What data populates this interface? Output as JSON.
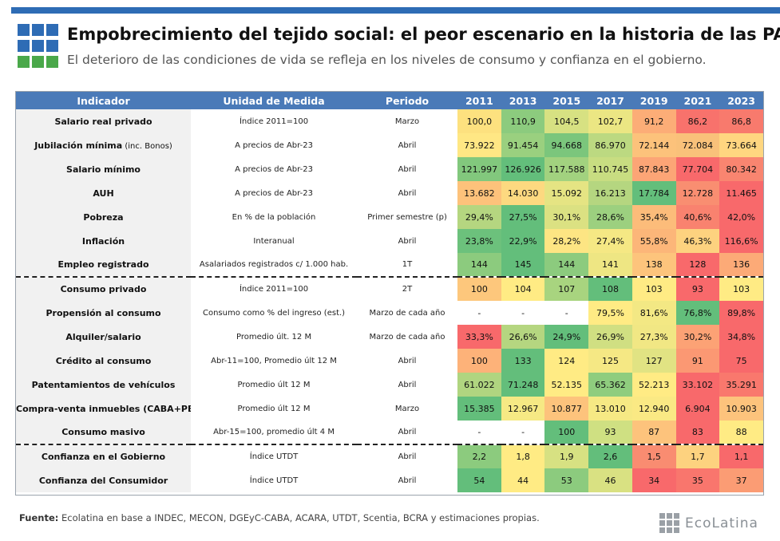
{
  "header": {
    "title": "Empobrecimiento del tejido social: el peor escenario en la historia de las PASO",
    "subtitle": "El deterioro de las condiciones de vida se refleja en los niveles de consumo y confianza en el gobierno."
  },
  "colors": {
    "accent": "#2e6cb5",
    "logo_blue": "#2e6cb5",
    "logo_green": "#4aa84a",
    "table_header": "#4a7ab8",
    "scale_green": "#63be7b",
    "scale_yellow": "#ffeb84",
    "scale_red": "#f8696b"
  },
  "chart_data": {
    "type": "table",
    "title": "Empobrecimiento del tejido social: el peor escenario en la historia de las PASO",
    "columns": [
      "Indicador",
      "Unidad de Medida",
      "Periodo",
      "2011",
      "2013",
      "2015",
      "2017",
      "2019",
      "2021",
      "2023"
    ],
    "rows": [
      {
        "indicator": "Salario real privado",
        "indicator_note": "",
        "unit": "Índice 2011=100",
        "period": "Marzo",
        "values": [
          "100,0",
          "110,9",
          "104,5",
          "102,7",
          "91,2",
          "86,2",
          "86,8"
        ],
        "scale": [
          "#fde17f",
          "#8ccb7e",
          "#d7e182",
          "#ebe683",
          "#fcad77",
          "#f8726c",
          "#f87a6d"
        ],
        "group_start": false
      },
      {
        "indicator": "Jubilación mínima",
        "indicator_note": "(inc. Bonos)",
        "unit": "A precios de Abr-23",
        "period": "Abril",
        "values": [
          "73.922",
          "91.454",
          "94.668",
          "86.970",
          "72.144",
          "72.084",
          "73.664"
        ],
        "scale": [
          "#ffe784",
          "#9ad07f",
          "#7bc67c",
          "#bcd981",
          "#fcc27b",
          "#f9c17a",
          "#ffd680"
        ],
        "group_start": false
      },
      {
        "indicator": "Salario mínimo",
        "indicator_note": "",
        "unit": "A precios de Abr-23",
        "period": "Abril",
        "values": [
          "121.997",
          "126.926",
          "117.588",
          "110.745",
          "87.843",
          "77.704",
          "80.342"
        ],
        "scale": [
          "#82c87d",
          "#63be7b",
          "#a2d27f",
          "#c8dd81",
          "#fca576",
          "#f8696b",
          "#f98570"
        ],
        "group_start": false
      },
      {
        "indicator": "AUH",
        "indicator_note": "",
        "unit": "A precios de Abr-23",
        "period": "Abril",
        "values": [
          "13.682",
          "14.030",
          "15.092",
          "16.213",
          "17.784",
          "12.728",
          "11.465"
        ],
        "scale": [
          "#fdc27b",
          "#fdd980",
          "#e5e483",
          "#b5d680",
          "#63be7b",
          "#f98e71",
          "#f8696b"
        ],
        "group_start": false
      },
      {
        "indicator": "Pobreza",
        "indicator_note": "",
        "unit": "En % de la población",
        "period": "Primer semestre (p)",
        "values": [
          "29,4%",
          "27,5%",
          "30,1%",
          "28,6%",
          "35,4%",
          "40,6%",
          "42,0%"
        ],
        "scale": [
          "#b5d680",
          "#63be7b",
          "#dbe182",
          "#9cd07f",
          "#fcbc7a",
          "#f9826f",
          "#f8696b"
        ],
        "group_start": false
      },
      {
        "indicator": "Inflación",
        "indicator_note": "",
        "unit": "Interanual",
        "period": "Abril",
        "values": [
          "23,8%",
          "22,9%",
          "28,2%",
          "27,4%",
          "55,8%",
          "46,3%",
          "116,6%"
        ],
        "scale": [
          "#6cc17c",
          "#63be7b",
          "#fde583",
          "#f5e884",
          "#fcb679",
          "#fdd27f",
          "#f8696b"
        ],
        "group_start": false
      },
      {
        "indicator": "Empleo registrado",
        "indicator_note": "",
        "unit": "Asalariados registrados c/ 1.000 hab.",
        "period": "1T",
        "values": [
          "144",
          "145",
          "144",
          "141",
          "138",
          "128",
          "136"
        ],
        "scale": [
          "#8ccb7e",
          "#63be7b",
          "#8ccb7e",
          "#eee683",
          "#fdc47c",
          "#f8696b",
          "#fcaa77"
        ],
        "group_start": false
      },
      {
        "indicator": "Consumo privado",
        "indicator_note": "",
        "unit": "Índice 2011=100",
        "period": "2T",
        "values": [
          "100",
          "104",
          "107",
          "108",
          "103",
          "93",
          "103"
        ],
        "scale": [
          "#fdc77c",
          "#ffeb84",
          "#a8d47f",
          "#63be7b",
          "#ffeb84",
          "#f8696b",
          "#ffeb84"
        ],
        "group_start": true
      },
      {
        "indicator": "Propensión al consumo",
        "indicator_note": "",
        "unit": "Consumo como % del ingreso (est.)",
        "period": "Marzo de cada año",
        "values": [
          "-",
          "-",
          "-",
          "79,5%",
          "81,6%",
          "76,8%",
          "89,8%"
        ],
        "scale": [
          "#ffffff",
          "#ffffff",
          "#ffffff",
          "#ffeb84",
          "#f3e884",
          "#63be7b",
          "#f8696b"
        ],
        "group_start": false
      },
      {
        "indicator": "Alquiler/salario",
        "indicator_note": "",
        "unit": "Promedio últ. 12 M",
        "period": "Marzo de cada año",
        "values": [
          "33,3%",
          "26,6%",
          "24,9%",
          "26,9%",
          "27,3%",
          "30,2%",
          "34,8%"
        ],
        "scale": [
          "#f8696b",
          "#b5d680",
          "#63be7b",
          "#d0df82",
          "#f1e784",
          "#fca275",
          "#f8696b"
        ],
        "group_start": false
      },
      {
        "indicator": "Crédito al consumo",
        "indicator_note": "",
        "unit": "Abr-11=100, Promedio últ 12 M",
        "period": "Abril",
        "values": [
          "100",
          "133",
          "124",
          "125",
          "127",
          "91",
          "75"
        ],
        "scale": [
          "#fdb279",
          "#63be7b",
          "#ffeb84",
          "#f5e884",
          "#e1e383",
          "#fb9873",
          "#f8696b"
        ],
        "group_start": false
      },
      {
        "indicator": "Patentamientos de vehículos",
        "indicator_note": "",
        "unit": "Promedio últ 12 M",
        "period": "Abril",
        "values": [
          "61.022",
          "71.248",
          "52.135",
          "65.362",
          "52.213",
          "33.102",
          "35.291"
        ],
        "scale": [
          "#b0d580",
          "#63be7b",
          "#ffeb84",
          "#8fcd7e",
          "#ffeb84",
          "#f8696b",
          "#f9786d"
        ],
        "group_start": false
      },
      {
        "indicator": "Compra-venta inmuebles (CABA+PBA)",
        "indicator_note": "",
        "unit": "Promedio últ 12 M",
        "period": "Marzo",
        "values": [
          "15.385",
          "12.967",
          "10.877",
          "13.010",
          "12.940",
          "6.904",
          "10.903"
        ],
        "scale": [
          "#63be7b",
          "#f6e984",
          "#fdc37c",
          "#f6e984",
          "#fae984",
          "#f8696b",
          "#fdc37c"
        ],
        "group_start": false
      },
      {
        "indicator": "Consumo masivo",
        "indicator_note": "",
        "unit": "Abr-15=100, promedio últ 4 M",
        "period": "Abril",
        "values": [
          "-",
          "-",
          "100",
          "93",
          "87",
          "83",
          "88"
        ],
        "scale": [
          "#ffffff",
          "#ffffff",
          "#63be7b",
          "#cfe082",
          "#fdc37c",
          "#f8696b",
          "#ffeb84"
        ],
        "group_start": false
      },
      {
        "indicator": "Confianza en el Gobierno",
        "indicator_note": "",
        "unit": "Índice UTDT",
        "period": "Abril",
        "values": [
          "2,2",
          "1,8",
          "1,9",
          "2,6",
          "1,5",
          "1,7",
          "1,1"
        ],
        "scale": [
          "#8ccb7e",
          "#ffeb84",
          "#d7e182",
          "#63be7b",
          "#f98c71",
          "#fdd27f",
          "#f8696b"
        ],
        "group_start": true
      },
      {
        "indicator": "Confianza del Consumidor",
        "indicator_note": "",
        "unit": "Índice UTDT",
        "period": "Abril",
        "values": [
          "54",
          "44",
          "53",
          "46",
          "34",
          "35",
          "37"
        ],
        "scale": [
          "#63be7b",
          "#ffeb84",
          "#8ccb7e",
          "#d9e182",
          "#f8696b",
          "#f9766d",
          "#fb9c74"
        ],
        "group_start": false
      }
    ]
  },
  "footer": {
    "source_label": "Fuente:",
    "source_text": " Ecolatina en base a INDEC, MECON, DGEyC-CABA, ACARA, UTDT, Scentia, BCRA y estimaciones propias.",
    "brand": "EcoLatina",
    "brand_icon": "grid-logo-icon"
  }
}
